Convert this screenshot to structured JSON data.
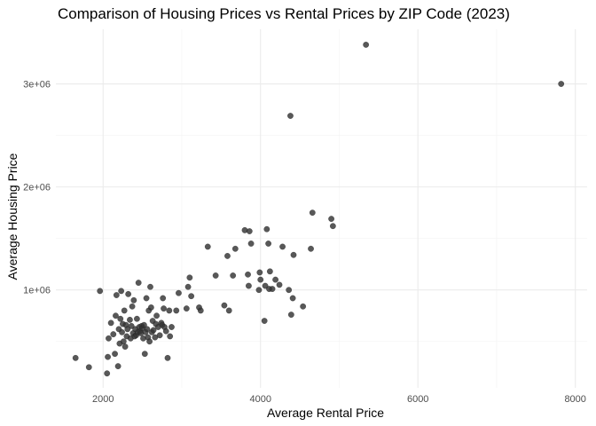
{
  "chart_data": {
    "type": "scatter",
    "title": "Comparison of Housing Prices vs Rental Prices by ZIP Code (2023)",
    "xlabel": "Average Rental Price",
    "ylabel": "Average Housing Price",
    "xlim": [
      1400,
      8150
    ],
    "ylim": [
      50000,
      3530000
    ],
    "x_ticks": [
      {
        "value": 2000,
        "label": "2000"
      },
      {
        "value": 4000,
        "label": "4000"
      },
      {
        "value": 6000,
        "label": "6000"
      },
      {
        "value": 8000,
        "label": "8000"
      }
    ],
    "y_ticks": [
      {
        "value": 1000000,
        "label": "1e+06"
      },
      {
        "value": 2000000,
        "label": "2e+06"
      },
      {
        "value": 3000000,
        "label": "3e+06"
      }
    ],
    "x_minor_ticks": [
      3000,
      5000,
      7000
    ],
    "y_minor_ticks": [
      500000,
      1500000,
      2500000
    ],
    "grid": true,
    "legend": "none",
    "point_color": "#333333",
    "points": [
      {
        "x": 1650,
        "y": 340000
      },
      {
        "x": 1820,
        "y": 250000
      },
      {
        "x": 1960,
        "y": 990000
      },
      {
        "x": 2050,
        "y": 190000
      },
      {
        "x": 2060,
        "y": 350000
      },
      {
        "x": 2070,
        "y": 530000
      },
      {
        "x": 2100,
        "y": 680000
      },
      {
        "x": 2130,
        "y": 570000
      },
      {
        "x": 2150,
        "y": 380000
      },
      {
        "x": 2160,
        "y": 750000
      },
      {
        "x": 2170,
        "y": 950000
      },
      {
        "x": 2190,
        "y": 260000
      },
      {
        "x": 2200,
        "y": 620000
      },
      {
        "x": 2210,
        "y": 480000
      },
      {
        "x": 2220,
        "y": 720000
      },
      {
        "x": 2230,
        "y": 990000
      },
      {
        "x": 2240,
        "y": 590000
      },
      {
        "x": 2250,
        "y": 670000
      },
      {
        "x": 2260,
        "y": 500000
      },
      {
        "x": 2270,
        "y": 800000
      },
      {
        "x": 2280,
        "y": 450000
      },
      {
        "x": 2290,
        "y": 660000
      },
      {
        "x": 2300,
        "y": 550000
      },
      {
        "x": 2310,
        "y": 620000
      },
      {
        "x": 2320,
        "y": 960000
      },
      {
        "x": 2340,
        "y": 710000
      },
      {
        "x": 2350,
        "y": 530000
      },
      {
        "x": 2360,
        "y": 650000
      },
      {
        "x": 2370,
        "y": 840000
      },
      {
        "x": 2380,
        "y": 580000
      },
      {
        "x": 2390,
        "y": 900000
      },
      {
        "x": 2400,
        "y": 550000
      },
      {
        "x": 2410,
        "y": 620000
      },
      {
        "x": 2420,
        "y": 560000
      },
      {
        "x": 2430,
        "y": 720000
      },
      {
        "x": 2440,
        "y": 590000
      },
      {
        "x": 2450,
        "y": 1070000
      },
      {
        "x": 2460,
        "y": 640000
      },
      {
        "x": 2470,
        "y": 600000
      },
      {
        "x": 2480,
        "y": 580000
      },
      {
        "x": 2490,
        "y": 650000
      },
      {
        "x": 2500,
        "y": 630000
      },
      {
        "x": 2510,
        "y": 530000
      },
      {
        "x": 2520,
        "y": 660000
      },
      {
        "x": 2530,
        "y": 380000
      },
      {
        "x": 2540,
        "y": 590000
      },
      {
        "x": 2550,
        "y": 920000
      },
      {
        "x": 2560,
        "y": 620000
      },
      {
        "x": 2570,
        "y": 540000
      },
      {
        "x": 2580,
        "y": 800000
      },
      {
        "x": 2590,
        "y": 500000
      },
      {
        "x": 2600,
        "y": 1030000
      },
      {
        "x": 2610,
        "y": 830000
      },
      {
        "x": 2620,
        "y": 590000
      },
      {
        "x": 2630,
        "y": 700000
      },
      {
        "x": 2640,
        "y": 610000
      },
      {
        "x": 2660,
        "y": 540000
      },
      {
        "x": 2670,
        "y": 670000
      },
      {
        "x": 2680,
        "y": 750000
      },
      {
        "x": 2700,
        "y": 640000
      },
      {
        "x": 2720,
        "y": 560000
      },
      {
        "x": 2740,
        "y": 680000
      },
      {
        "x": 2750,
        "y": 660000
      },
      {
        "x": 2760,
        "y": 920000
      },
      {
        "x": 2770,
        "y": 820000
      },
      {
        "x": 2780,
        "y": 640000
      },
      {
        "x": 2800,
        "y": 600000
      },
      {
        "x": 2820,
        "y": 340000
      },
      {
        "x": 2840,
        "y": 800000
      },
      {
        "x": 2850,
        "y": 550000
      },
      {
        "x": 2870,
        "y": 640000
      },
      {
        "x": 2930,
        "y": 800000
      },
      {
        "x": 2960,
        "y": 970000
      },
      {
        "x": 3060,
        "y": 820000
      },
      {
        "x": 3080,
        "y": 1030000
      },
      {
        "x": 3100,
        "y": 1120000
      },
      {
        "x": 3120,
        "y": 940000
      },
      {
        "x": 3220,
        "y": 830000
      },
      {
        "x": 3240,
        "y": 800000
      },
      {
        "x": 3330,
        "y": 1420000
      },
      {
        "x": 3430,
        "y": 1140000
      },
      {
        "x": 3540,
        "y": 850000
      },
      {
        "x": 3580,
        "y": 1330000
      },
      {
        "x": 3600,
        "y": 800000
      },
      {
        "x": 3650,
        "y": 1140000
      },
      {
        "x": 3680,
        "y": 1400000
      },
      {
        "x": 3800,
        "y": 1580000
      },
      {
        "x": 3840,
        "y": 1150000
      },
      {
        "x": 3850,
        "y": 1040000
      },
      {
        "x": 3860,
        "y": 1570000
      },
      {
        "x": 3880,
        "y": 1450000
      },
      {
        "x": 3980,
        "y": 1000000
      },
      {
        "x": 3990,
        "y": 1170000
      },
      {
        "x": 4000,
        "y": 1100000
      },
      {
        "x": 4050,
        "y": 700000
      },
      {
        "x": 4060,
        "y": 1040000
      },
      {
        "x": 4080,
        "y": 1590000
      },
      {
        "x": 4100,
        "y": 1450000
      },
      {
        "x": 4110,
        "y": 1010000
      },
      {
        "x": 4120,
        "y": 1180000
      },
      {
        "x": 4150,
        "y": 1010000
      },
      {
        "x": 4190,
        "y": 1100000
      },
      {
        "x": 4240,
        "y": 1050000
      },
      {
        "x": 4280,
        "y": 1420000
      },
      {
        "x": 4360,
        "y": 1000000
      },
      {
        "x": 4380,
        "y": 2690000
      },
      {
        "x": 4390,
        "y": 760000
      },
      {
        "x": 4410,
        "y": 920000
      },
      {
        "x": 4420,
        "y": 1340000
      },
      {
        "x": 4540,
        "y": 840000
      },
      {
        "x": 4640,
        "y": 1400000
      },
      {
        "x": 4660,
        "y": 1750000
      },
      {
        "x": 4900,
        "y": 1690000
      },
      {
        "x": 4920,
        "y": 1620000
      },
      {
        "x": 5340,
        "y": 3380000
      },
      {
        "x": 7820,
        "y": 3000000
      }
    ]
  }
}
